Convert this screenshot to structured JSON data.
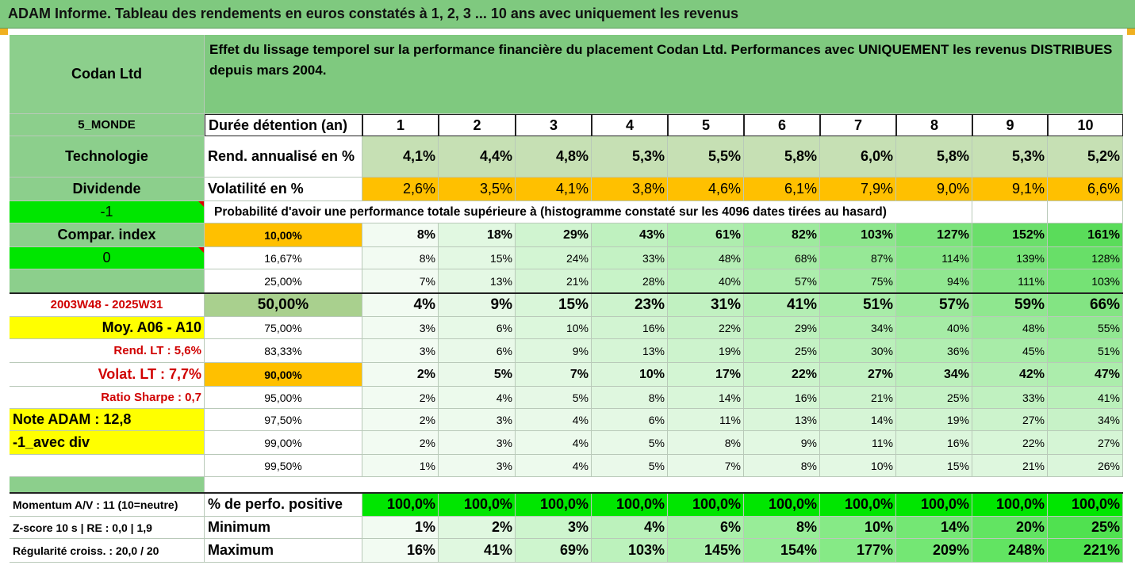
{
  "title": "ADAM Informe. Tableau des rendements en euros constatés à 1, 2, 3 ... 10 ans avec uniquement les revenus",
  "company": "Codan Ltd",
  "description": "Effet du lissage temporel sur la performance financière du placement Codan Ltd. Performances avec UNIQUEMENT les revenus DISTRIBUES depuis mars 2004.",
  "left_panel": {
    "region": "5_MONDE",
    "sector": "Technologie",
    "type": "Dividende",
    "code_a": "-1",
    "compar_index": "Compar. index",
    "code_b": "0",
    "period": "2003W48 - 2025W31",
    "moy": "Moy. A06 - A10",
    "rend_lt": "Rend. LT :   5,6%",
    "volat_lt": "Volat. LT :   7,7%",
    "sharpe": "Ratio Sharpe :   0,7",
    "note": "Note ADAM : 12,8",
    "avec_div": "-1_avec div",
    "momentum": "Momentum A/V : 11 (10=neutre)",
    "zscore": "Z-score 10 s  | RE : 0,0  | 1,9",
    "regularite": "Régularité croiss. : 20,0 / 20"
  },
  "header": {
    "duration_label": "Durée détention (an)",
    "years": [
      "1",
      "2",
      "3",
      "4",
      "5",
      "6",
      "7",
      "8",
      "9",
      "10"
    ]
  },
  "rend": {
    "label": "Rend. annualisé en %",
    "values": [
      "4,1%",
      "4,4%",
      "4,8%",
      "5,3%",
      "5,5%",
      "5,8%",
      "6,0%",
      "5,8%",
      "5,3%",
      "5,2%"
    ]
  },
  "volat": {
    "label": "Volatilité en %",
    "values": [
      "2,6%",
      "3,5%",
      "4,1%",
      "3,8%",
      "4,6%",
      "6,1%",
      "7,9%",
      "9,0%",
      "9,1%",
      "6,6%"
    ]
  },
  "prob_title": "Probabilité d'avoir une performance totale supérieure à (histogramme constaté sur les 4096 dates tirées au hasard)",
  "prob_rows": [
    {
      "p": "10,00%",
      "values": [
        "8%",
        "18%",
        "29%",
        "43%",
        "61%",
        "82%",
        "103%",
        "127%",
        "152%",
        "161%"
      ]
    },
    {
      "p": "16,67%",
      "values": [
        "8%",
        "15%",
        "24%",
        "33%",
        "48%",
        "68%",
        "87%",
        "114%",
        "139%",
        "128%"
      ]
    },
    {
      "p": "25,00%",
      "values": [
        "7%",
        "13%",
        "21%",
        "28%",
        "40%",
        "57%",
        "75%",
        "94%",
        "111%",
        "103%"
      ]
    },
    {
      "p": "50,00%",
      "values": [
        "4%",
        "9%",
        "15%",
        "23%",
        "31%",
        "41%",
        "51%",
        "57%",
        "59%",
        "66%"
      ]
    },
    {
      "p": "75,00%",
      "values": [
        "3%",
        "6%",
        "10%",
        "16%",
        "22%",
        "29%",
        "34%",
        "40%",
        "48%",
        "55%"
      ]
    },
    {
      "p": "83,33%",
      "values": [
        "3%",
        "6%",
        "9%",
        "13%",
        "19%",
        "25%",
        "30%",
        "36%",
        "45%",
        "51%"
      ]
    },
    {
      "p": "90,00%",
      "values": [
        "2%",
        "5%",
        "7%",
        "10%",
        "17%",
        "22%",
        "27%",
        "34%",
        "42%",
        "47%"
      ]
    },
    {
      "p": "95,00%",
      "values": [
        "2%",
        "4%",
        "5%",
        "8%",
        "14%",
        "16%",
        "21%",
        "25%",
        "33%",
        "41%"
      ]
    },
    {
      "p": "97,50%",
      "values": [
        "2%",
        "3%",
        "4%",
        "6%",
        "11%",
        "13%",
        "14%",
        "19%",
        "27%",
        "34%"
      ]
    },
    {
      "p": "99,00%",
      "values": [
        "2%",
        "3%",
        "4%",
        "5%",
        "8%",
        "9%",
        "11%",
        "16%",
        "22%",
        "27%"
      ]
    },
    {
      "p": "99,50%",
      "values": [
        "1%",
        "3%",
        "4%",
        "5%",
        "7%",
        "8%",
        "10%",
        "15%",
        "21%",
        "26%"
      ]
    }
  ],
  "stats": [
    {
      "label": "% de perfo. positive",
      "values": [
        "100,0%",
        "100,0%",
        "100,0%",
        "100,0%",
        "100,0%",
        "100,0%",
        "100,0%",
        "100,0%",
        "100,0%",
        "100,0%"
      ]
    },
    {
      "label": "Minimum",
      "values": [
        "1%",
        "2%",
        "3%",
        "4%",
        "6%",
        "8%",
        "10%",
        "14%",
        "20%",
        "25%"
      ]
    },
    {
      "label": "Maximum",
      "values": [
        "16%",
        "41%",
        "69%",
        "103%",
        "145%",
        "154%",
        "177%",
        "209%",
        "248%",
        "221%"
      ]
    }
  ],
  "colors": {
    "header_green": "#7fc97f",
    "left_green": "#8ccf8c",
    "orange": "#ffc000",
    "yellow": "#ffff00",
    "bright_green": "#00e600",
    "red_text": "#d00000",
    "light_cell": "#f2fbf2",
    "mid_green": "#c6e0b4"
  }
}
